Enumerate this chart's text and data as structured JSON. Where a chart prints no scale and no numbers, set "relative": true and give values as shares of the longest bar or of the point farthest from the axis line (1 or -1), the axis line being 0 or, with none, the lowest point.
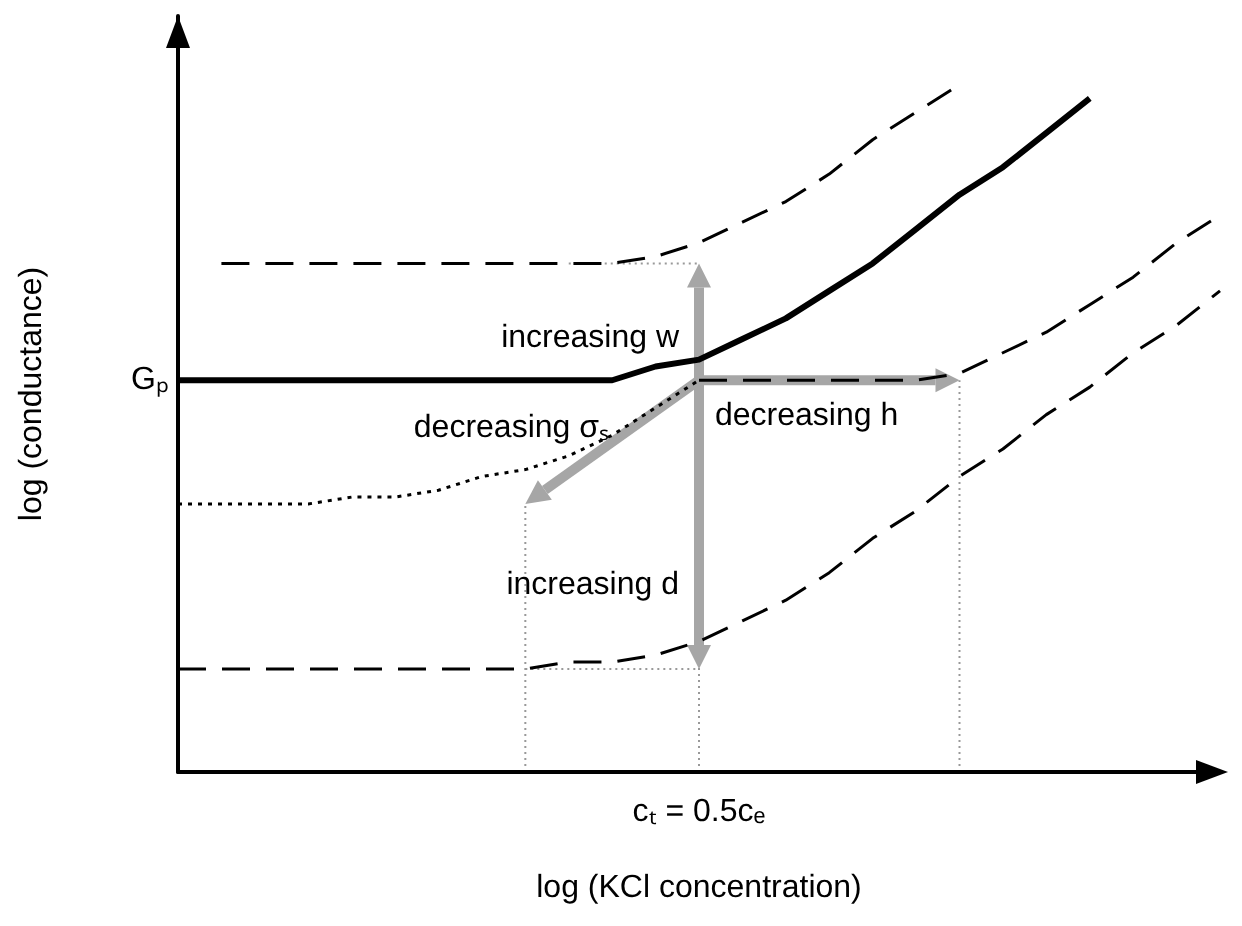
{
  "chart_data": {
    "type": "line",
    "relative": true,
    "xlabel": "log (KCl concentration)",
    "ylabel": "log (conductance)",
    "categories": [
      null,
      null,
      null,
      null,
      null,
      null,
      null,
      null,
      null,
      null,
      null,
      null,
      null,
      null,
      null,
      null,
      null,
      null,
      null,
      null,
      null,
      null,
      null,
      null,
      null
    ],
    "series": [
      {
        "color": "#000000",
        "line_style": "solid",
        "values": [
          0.57,
          0.57,
          0.57,
          0.57,
          0.57,
          0.57,
          0.57,
          0.57,
          0.57,
          0.57,
          0.57,
          0.59,
          0.6,
          0.63,
          0.66,
          0.7,
          0.74,
          0.79,
          0.84,
          0.88,
          0.93,
          0.98,
          null,
          null,
          null
        ]
      },
      {
        "color": "#000000",
        "line_style": "dashed",
        "values": [
          null,
          0.74,
          0.74,
          0.74,
          0.74,
          0.74,
          0.74,
          0.74,
          0.74,
          0.74,
          0.74,
          0.75,
          0.77,
          0.8,
          0.83,
          0.87,
          0.92,
          0.96,
          1.0,
          null,
          null,
          null,
          null,
          null,
          null
        ]
      },
      {
        "color": "#000000",
        "line_style": "dotted",
        "values": [
          0.39,
          0.39,
          0.39,
          0.39,
          0.4,
          0.4,
          0.41,
          0.43,
          0.44,
          0.46,
          0.49,
          0.53,
          0.57,
          null,
          null,
          null,
          null,
          null,
          null,
          null,
          null,
          null,
          null,
          null,
          null
        ]
      },
      {
        "color": "#000000",
        "line_style": "dashed",
        "values": [
          null,
          null,
          null,
          null,
          null,
          null,
          null,
          null,
          null,
          null,
          null,
          null,
          0.57,
          0.57,
          0.57,
          0.57,
          0.57,
          0.57,
          0.58,
          0.61,
          0.64,
          0.68,
          0.72,
          0.77,
          0.81
        ]
      },
      {
        "color": "#000000",
        "line_style": "dashed",
        "values": [
          0.15,
          0.15,
          0.15,
          0.15,
          0.15,
          0.15,
          0.15,
          0.15,
          0.15,
          0.16,
          0.16,
          0.17,
          0.19,
          0.22,
          0.25,
          0.29,
          0.34,
          0.38,
          0.43,
          0.47,
          0.52,
          0.56,
          0.61,
          0.65,
          0.7
        ]
      }
    ],
    "annotations": [
      "Gₚ",
      "increasing w",
      "decreasing σₛ",
      "decreasing h",
      "increasing d",
      "cₜ = 0.5cₑ"
    ],
    "marker": "none",
    "grid": false
  }
}
